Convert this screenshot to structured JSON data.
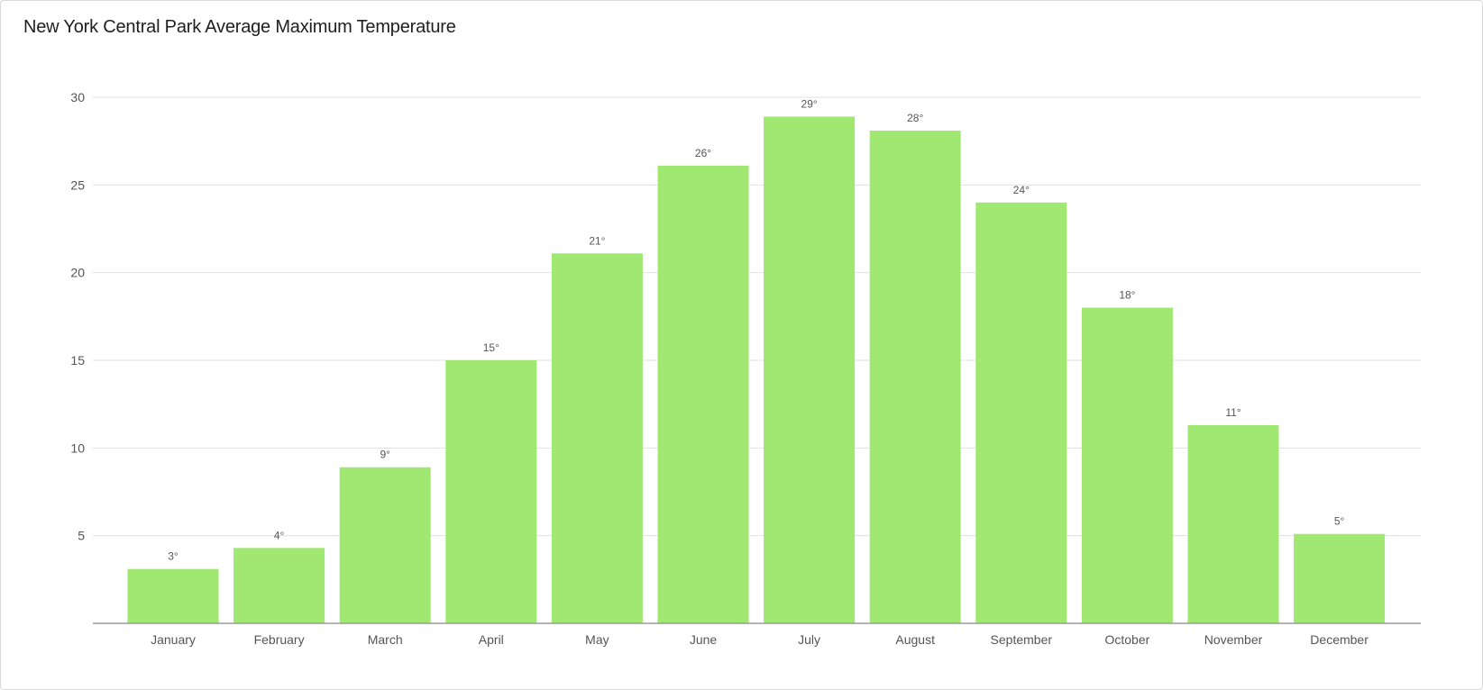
{
  "chart_data": {
    "type": "bar",
    "title": "New York Central Park Average Maximum Temperature",
    "xlabel": "",
    "ylabel": "",
    "categories": [
      "January",
      "February",
      "March",
      "April",
      "May",
      "June",
      "July",
      "August",
      "September",
      "October",
      "November",
      "December"
    ],
    "values": [
      3.1,
      4.3,
      8.9,
      15.0,
      21.1,
      26.1,
      28.9,
      28.1,
      24.0,
      18.0,
      11.3,
      5.1
    ],
    "data_labels": [
      "3°",
      "4°",
      "9°",
      "15°",
      "21°",
      "26°",
      "29°",
      "28°",
      "24°",
      "18°",
      "11°",
      "5°"
    ],
    "yticks": [
      5,
      10,
      15,
      20,
      25,
      30
    ],
    "ylim": [
      0,
      30
    ],
    "grid": true,
    "legend": "none",
    "colors": {
      "bar": "#a0e872",
      "gridline": "#e1e1e1",
      "baseline": "#9b9b9b",
      "text": "#555555"
    }
  }
}
